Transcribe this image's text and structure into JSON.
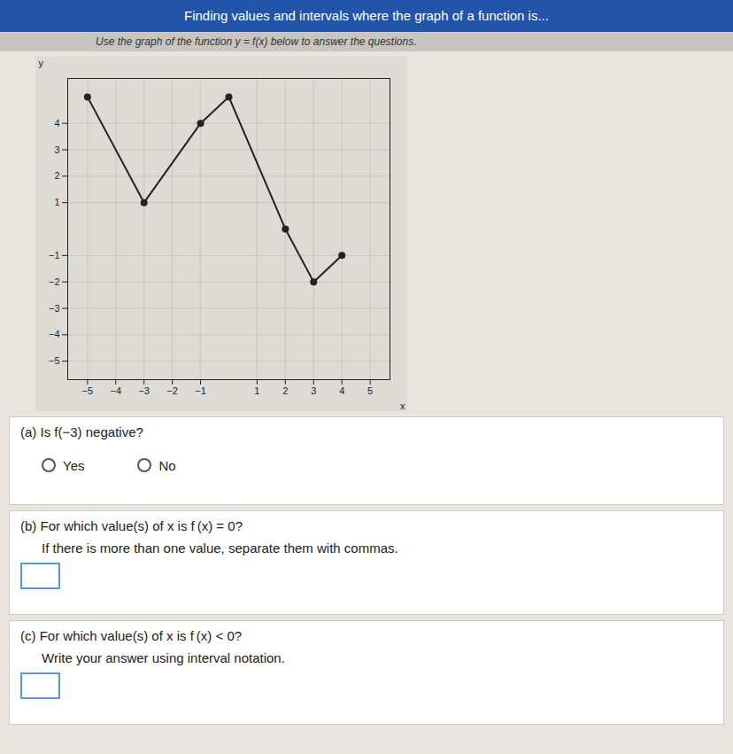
{
  "chart_data": {
    "type": "line",
    "title": "Finding values and intervals where the graph of a function is...",
    "subtitle": "Use the graph of the function y = f(x) below to answer the questions.",
    "x": [
      -5,
      -3,
      -1,
      0,
      2,
      3,
      4
    ],
    "values": [
      5,
      1,
      4,
      5,
      0,
      -2,
      -1
    ],
    "xlim": [
      -5.7,
      5.7
    ],
    "ylim": [
      -5.7,
      5.7
    ],
    "xticks": [
      -5,
      -4,
      -3,
      -2,
      -1,
      1,
      2,
      3,
      4,
      5
    ],
    "yticks": [
      -5,
      -4,
      -3,
      -2,
      -1,
      1,
      2,
      3,
      4
    ],
    "xlabel": "x",
    "ylabel": "y",
    "grid": true,
    "marker": "circle",
    "annotations": [
      "(a)  Is f(−3) negative?",
      "Yes",
      "No",
      "(b)  For which value(s) of x is f (x) = 0?",
      "If there is more than one value, separate them with commas.",
      "(c)  For which value(s) of x is f (x) < 0?",
      "Write your answer using interval notation."
    ]
  }
}
